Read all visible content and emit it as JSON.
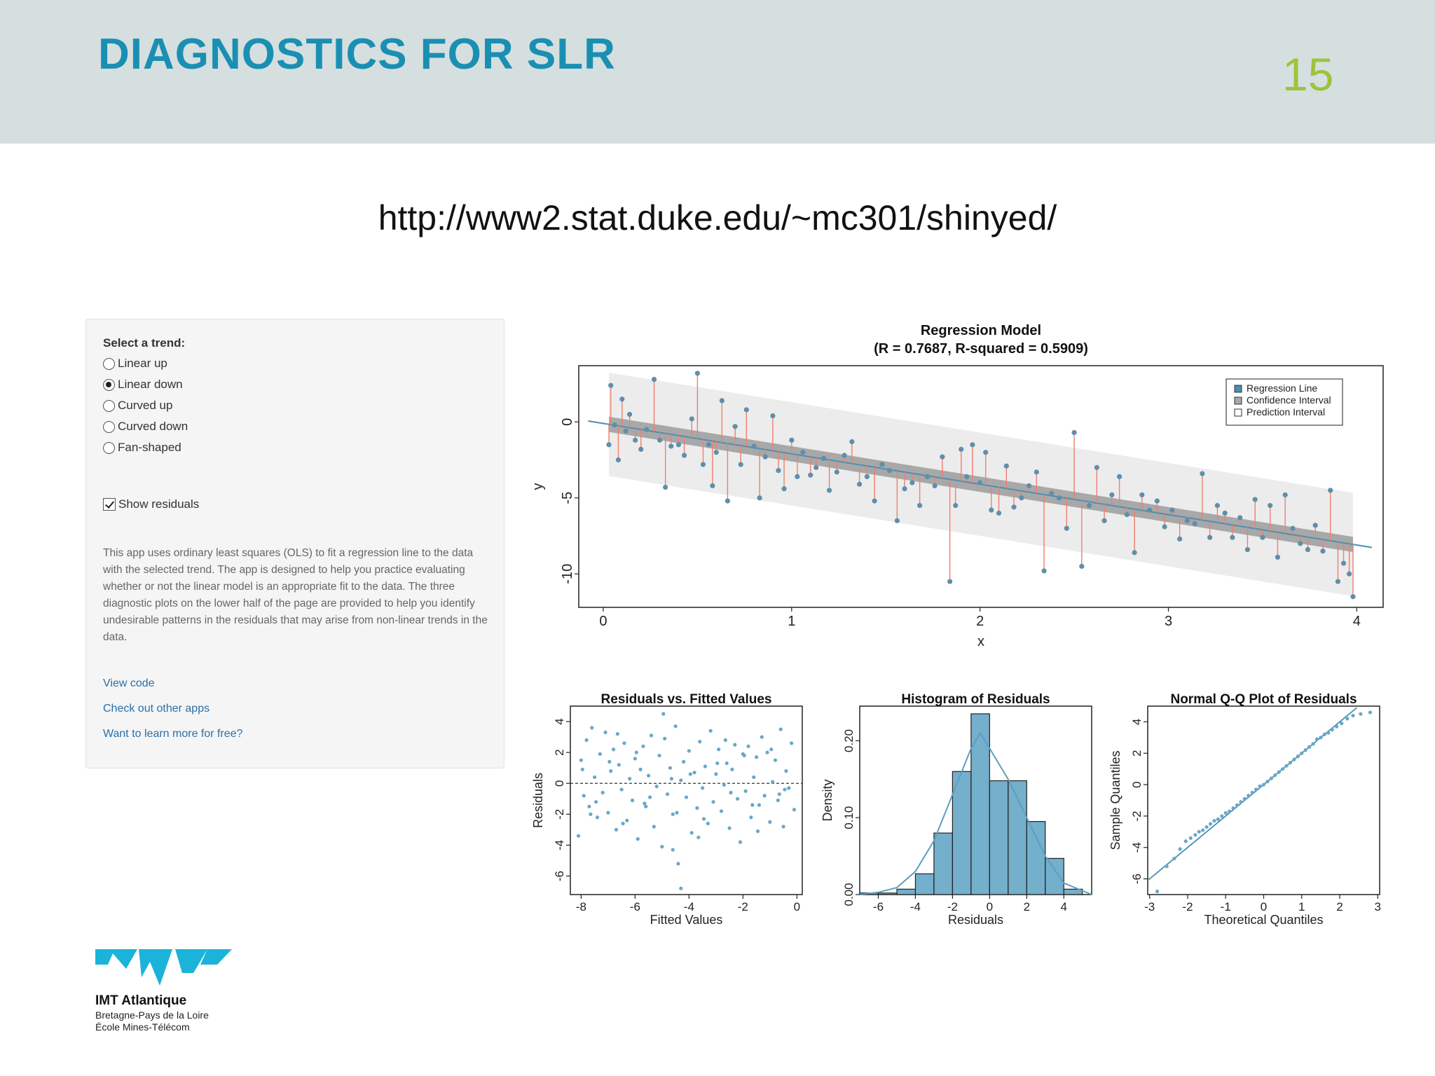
{
  "slide": {
    "title": "DIAGNOSTICS FOR SLR",
    "page_number": "15",
    "url": "http://www2.stat.duke.edu/~mc301/shinyed/"
  },
  "sidebar": {
    "trend_label": "Select a trend:",
    "trends": [
      {
        "label": "Linear up",
        "selected": false
      },
      {
        "label": "Linear down",
        "selected": true
      },
      {
        "label": "Curved up",
        "selected": false
      },
      {
        "label": "Curved down",
        "selected": false
      },
      {
        "label": "Fan-shaped",
        "selected": false
      }
    ],
    "show_residuals_label": "Show residuals",
    "show_residuals_checked": true,
    "description": "This app uses ordinary least squares (OLS) to fit a regression line to the data with the selected trend. The app is designed to help you practice evaluating whether or not the linear model is an appropriate fit to the data. The three diagnostic plots on the lower half of the page are provided to help you identify undesirable patterns in the residuals that may arise from non-linear trends in the data.",
    "links": [
      "View code",
      "Check out other apps",
      "Want to learn more for free?"
    ]
  },
  "logo": {
    "name": "IMT Atlantique",
    "line1": "Bretagne-Pays de la Loire",
    "line2": "École Mines-Télécom"
  },
  "chart_data": [
    {
      "type": "scatter",
      "title": "Regression Model",
      "subtitle": "(R = 0.7687, R-squared = 0.5909)",
      "xlabel": "x",
      "ylabel": "y",
      "xlim": [
        -0.13,
        4.14
      ],
      "ylim": [
        -12.2,
        3.7
      ],
      "xticks": [
        0,
        1,
        2,
        3,
        4
      ],
      "yticks": [
        0,
        -5,
        -10
      ],
      "regression": {
        "intercept": -0.1,
        "slope": -2.0
      },
      "confidence_halfwidth": 0.5,
      "prediction_halfwidth": 3.4,
      "legend": [
        "Regression Line",
        "Confidence Interval",
        "Prediction Interval"
      ],
      "legend_position": "top-right",
      "x": [
        0.03,
        0.04,
        0.06,
        0.08,
        0.1,
        0.12,
        0.14,
        0.17,
        0.2,
        0.23,
        0.27,
        0.3,
        0.33,
        0.36,
        0.4,
        0.43,
        0.47,
        0.5,
        0.53,
        0.56,
        0.58,
        0.6,
        0.63,
        0.66,
        0.7,
        0.73,
        0.76,
        0.8,
        0.83,
        0.86,
        0.9,
        0.93,
        0.96,
        1.0,
        1.03,
        1.06,
        1.1,
        1.13,
        1.17,
        1.2,
        1.24,
        1.28,
        1.32,
        1.36,
        1.4,
        1.44,
        1.48,
        1.52,
        1.56,
        1.6,
        1.64,
        1.68,
        1.72,
        1.76,
        1.8,
        1.84,
        1.87,
        1.9,
        1.93,
        1.96,
        2.0,
        2.03,
        2.06,
        2.1,
        2.14,
        2.18,
        2.22,
        2.26,
        2.3,
        2.34,
        2.38,
        2.42,
        2.46,
        2.5,
        2.54,
        2.58,
        2.62,
        2.66,
        2.7,
        2.74,
        2.78,
        2.82,
        2.86,
        2.9,
        2.94,
        2.98,
        3.02,
        3.06,
        3.1,
        3.14,
        3.18,
        3.22,
        3.26,
        3.3,
        3.34,
        3.38,
        3.42,
        3.46,
        3.5,
        3.54,
        3.58,
        3.62,
        3.66,
        3.7,
        3.74,
        3.78,
        3.82,
        3.86,
        3.9,
        3.93,
        3.96,
        3.98
      ],
      "y": [
        -1.5,
        2.4,
        -0.2,
        -2.5,
        1.5,
        -0.6,
        0.5,
        -1.2,
        -1.8,
        -0.5,
        2.8,
        -1.2,
        -4.3,
        -1.6,
        -1.5,
        -2.2,
        0.2,
        3.2,
        -2.8,
        -1.5,
        -4.2,
        -2.0,
        1.4,
        -5.2,
        -0.3,
        -2.8,
        0.8,
        -1.6,
        -5.0,
        -2.3,
        0.4,
        -3.2,
        -4.4,
        -1.2,
        -3.6,
        -2.0,
        -3.5,
        -3.0,
        -2.4,
        -4.5,
        -3.3,
        -2.2,
        -1.3,
        -4.1,
        -3.6,
        -5.2,
        -2.8,
        -3.2,
        -6.5,
        -4.4,
        -4.0,
        -5.5,
        -3.6,
        -4.2,
        -2.3,
        -10.5,
        -5.5,
        -1.8,
        -3.6,
        -1.5,
        -4.0,
        -2.0,
        -5.8,
        -6.0,
        -2.9,
        -5.6,
        -5.0,
        -4.2,
        -3.3,
        -9.8,
        -4.7,
        -5.0,
        -7.0,
        -0.7,
        -9.5,
        -5.5,
        -3.0,
        -6.5,
        -4.8,
        -3.6,
        -6.1,
        -8.6,
        -4.8,
        -5.8,
        -5.2,
        -6.9,
        -5.8,
        -7.7,
        -6.5,
        -6.7,
        -3.4,
        -7.6,
        -5.5,
        -6.0,
        -7.6,
        -6.3,
        -8.4,
        -5.1,
        -7.6,
        -5.5,
        -8.9,
        -4.8,
        -7.0,
        -8.0,
        -8.4,
        -6.8,
        -8.5,
        -4.5,
        -10.5,
        -9.3,
        -10.0,
        -11.5
      ]
    },
    {
      "type": "scatter",
      "title": "Residuals vs. Fitted Values",
      "xlabel": "Fitted Values",
      "ylabel": "Residuals",
      "xlim": [
        -8.4,
        0.2
      ],
      "ylim": [
        -7.2,
        5.0
      ],
      "xticks": [
        -8,
        -6,
        -4,
        -2,
        0
      ],
      "yticks": [
        4,
        2,
        0,
        -2,
        -4,
        -6
      ],
      "zero_line": true,
      "x": [
        -8.1,
        -8.0,
        -7.9,
        -7.8,
        -7.7,
        -7.6,
        -7.5,
        -7.4,
        -7.3,
        -7.2,
        -7.1,
        -7.0,
        -6.9,
        -6.8,
        -6.7,
        -6.6,
        -6.5,
        -6.4,
        -6.3,
        -6.2,
        -6.1,
        -6.0,
        -5.9,
        -5.8,
        -5.7,
        -5.6,
        -5.5,
        -5.4,
        -5.3,
        -5.2,
        -5.1,
        -5.0,
        -4.9,
        -4.8,
        -4.7,
        -4.6,
        -4.5,
        -4.4,
        -4.3,
        -4.2,
        -4.1,
        -4.0,
        -3.9,
        -3.8,
        -3.7,
        -3.6,
        -3.5,
        -3.4,
        -3.3,
        -3.2,
        -3.1,
        -3.0,
        -2.9,
        -2.8,
        -2.7,
        -2.6,
        -2.5,
        -2.4,
        -2.3,
        -2.2,
        -2.1,
        -2.0,
        -1.9,
        -1.8,
        -1.7,
        -1.6,
        -1.5,
        -1.4,
        -1.3,
        -1.2,
        -1.1,
        -1.0,
        -0.9,
        -0.8,
        -0.7,
        -0.6,
        -0.5,
        -0.4,
        -0.3,
        -0.2,
        -0.1,
        -7.95,
        -7.45,
        -6.95,
        -6.45,
        -5.95,
        -5.45,
        -4.95,
        -4.45,
        -3.95,
        -3.45,
        -2.95,
        -2.45,
        -1.95,
        -1.45,
        -0.95,
        -0.45,
        -7.65,
        -6.65,
        -5.65,
        -4.65,
        -3.65,
        -2.65,
        -1.65,
        -0.65,
        -4.3,
        -4.6
      ],
      "y": [
        -3.4,
        1.5,
        -0.8,
        2.8,
        -1.5,
        3.6,
        0.4,
        -2.2,
        1.9,
        -0.6,
        3.3,
        -1.9,
        0.8,
        2.2,
        -3.0,
        1.2,
        -0.4,
        2.6,
        -2.4,
        0.3,
        -1.1,
        1.6,
        -3.6,
        0.9,
        2.4,
        -1.5,
        0.5,
        3.1,
        -2.8,
        -0.2,
        1.8,
        -4.1,
        2.9,
        -0.7,
        1.0,
        -2.0,
        3.7,
        -5.2,
        0.2,
        1.4,
        -0.9,
        2.1,
        -3.2,
        0.7,
        -1.6,
        2.7,
        -0.3,
        1.1,
        -2.6,
        3.4,
        -1.2,
        0.6,
        2.2,
        -1.8,
        -0.1,
        1.3,
        -2.9,
        0.9,
        2.5,
        -1.0,
        -3.8,
        1.9,
        -0.5,
        2.4,
        -2.2,
        0.4,
        1.7,
        -1.4,
        3.0,
        -0.8,
        2.0,
        -2.5,
        0.1,
        1.5,
        -1.1,
        3.5,
        -2.8,
        0.8,
        -0.3,
        2.6,
        -1.7,
        0.9,
        -1.2,
        1.4,
        -2.6,
        2.0,
        -0.9,
        4.5,
        -1.9,
        0.6,
        -2.3,
        1.3,
        -0.6,
        1.8,
        -3.1,
        2.2,
        -0.4,
        -2.0,
        3.2,
        -1.3,
        0.3,
        -3.5,
        2.8,
        -1.4,
        -0.7,
        -6.8,
        -4.3
      ]
    },
    {
      "type": "bar",
      "title": "Histogram of Residuals",
      "xlabel": "Residuals",
      "ylabel": "Density",
      "xlim": [
        -7.0,
        5.5
      ],
      "ylim": [
        0,
        0.245
      ],
      "xticks": [
        -6,
        -4,
        -2,
        0,
        2,
        4
      ],
      "yticks": [
        0.0,
        0.1,
        0.2
      ],
      "ytick_labels": [
        "0.00",
        "0.10",
        "0.20"
      ],
      "bin_edges": [
        -7,
        -6,
        -5,
        -4,
        -3,
        -2,
        -1,
        0,
        1,
        2,
        3,
        4,
        5
      ],
      "values": [
        0.002,
        0.002,
        0.007,
        0.027,
        0.08,
        0.16,
        0.235,
        0.148,
        0.148,
        0.095,
        0.047,
        0.007
      ],
      "density_curve": {
        "x": [
          -7,
          -6,
          -5,
          -4,
          -3,
          -2,
          -1,
          -0.5,
          0,
          1,
          2,
          3,
          4,
          5.5
        ],
        "y": [
          0.0,
          0.003,
          0.009,
          0.03,
          0.07,
          0.13,
          0.19,
          0.21,
          0.19,
          0.15,
          0.1,
          0.05,
          0.015,
          0.0
        ]
      }
    },
    {
      "type": "scatter",
      "title": "Normal Q-Q Plot of Residuals",
      "xlabel": "Theoretical Quantiles",
      "ylabel": "Sample Quantiles",
      "xlim": [
        -3.05,
        3.05
      ],
      "ylim": [
        -7.0,
        5.0
      ],
      "xticks": [
        -3,
        -2,
        -1,
        0,
        1,
        2,
        3
      ],
      "yticks": [
        4,
        2,
        0,
        -2,
        -4,
        -6
      ],
      "reference_line": {
        "intercept": 0,
        "slope": 2.0
      },
      "x": [
        -2.8,
        -2.55,
        -2.35,
        -2.2,
        -2.05,
        -1.92,
        -1.8,
        -1.7,
        -1.6,
        -1.5,
        -1.4,
        -1.3,
        -1.2,
        -1.1,
        -1.0,
        -0.9,
        -0.8,
        -0.7,
        -0.6,
        -0.5,
        -0.4,
        -0.3,
        -0.2,
        -0.1,
        0.0,
        0.1,
        0.2,
        0.3,
        0.4,
        0.5,
        0.6,
        0.7,
        0.8,
        0.9,
        1.0,
        1.1,
        1.2,
        1.3,
        1.4,
        1.5,
        1.6,
        1.7,
        1.8,
        1.92,
        2.05,
        2.2,
        2.35,
        2.55,
        2.8
      ],
      "y": [
        -6.8,
        -5.2,
        -4.7,
        -4.1,
        -3.6,
        -3.4,
        -3.2,
        -3.0,
        -2.9,
        -2.7,
        -2.5,
        -2.3,
        -2.2,
        -2.0,
        -1.8,
        -1.7,
        -1.5,
        -1.3,
        -1.1,
        -0.9,
        -0.7,
        -0.5,
        -0.3,
        -0.1,
        0.0,
        0.2,
        0.4,
        0.6,
        0.8,
        1.0,
        1.2,
        1.4,
        1.6,
        1.8,
        2.0,
        2.2,
        2.4,
        2.6,
        2.9,
        3.0,
        3.2,
        3.3,
        3.5,
        3.7,
        3.9,
        4.2,
        4.4,
        4.5,
        4.6
      ]
    }
  ]
}
